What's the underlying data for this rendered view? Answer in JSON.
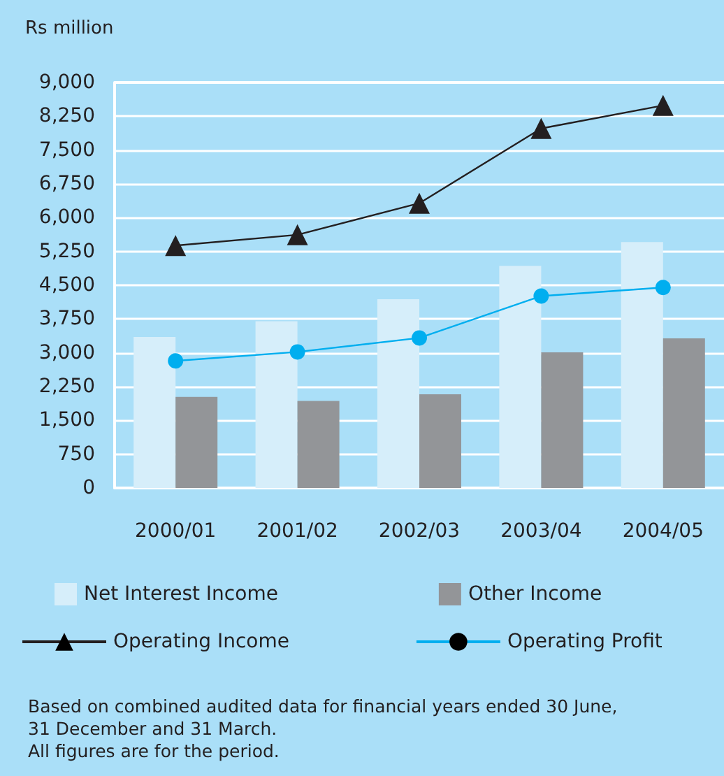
{
  "chart_data": {
    "type": "bar",
    "ylabel": "Rs million",
    "categories": [
      "2000/01",
      "2001/02",
      "2002/03",
      "2003/04",
      "2004/05"
    ],
    "series": [
      {
        "name": "Net Interest Income",
        "color": "#d6eefa",
        "values": [
          3350,
          3700,
          4190,
          4930,
          5460
        ]
      },
      {
        "name": "Other Income",
        "color": "#939598",
        "values": [
          2020,
          1930,
          2080,
          3010,
          3320
        ]
      },
      {
        "name": "Operating Income",
        "type": "line",
        "color": "#231f20",
        "marker": "triangle",
        "values": [
          5380,
          5620,
          6320,
          7980,
          8490
        ]
      },
      {
        "name": "Operating Profit",
        "type": "line",
        "color": "#00aeef",
        "marker": "circle",
        "values": [
          2820,
          3020,
          3330,
          4260,
          4450
        ]
      }
    ],
    "ylim": [
      0,
      9000
    ],
    "yticks": [
      0,
      750,
      {
        "value": 1500,
        "label": "1,500"
      },
      {
        "value": 2250,
        "label": "2,250"
      },
      {
        "value": 3000,
        "label": "3,000"
      },
      {
        "value": 3750,
        "label": "3,750"
      },
      {
        "value": 4500,
        "label": "4,500"
      },
      {
        "value": 5250,
        "label": "5,250"
      },
      {
        "value": 6000,
        "label": "6,000"
      },
      {
        "value": 6750,
        "label": "6,750"
      },
      {
        "value": 7500,
        "label": "7,500"
      },
      {
        "value": 8250,
        "label": "8,250"
      },
      {
        "value": 9000,
        "label": "9,000"
      }
    ],
    "grid": "y",
    "legend": "bottom",
    "annotations": [
      "Based on combined audited data for financial years ended 30 June,\n31 December and 31 March.\nAll figures are for the period."
    ]
  }
}
